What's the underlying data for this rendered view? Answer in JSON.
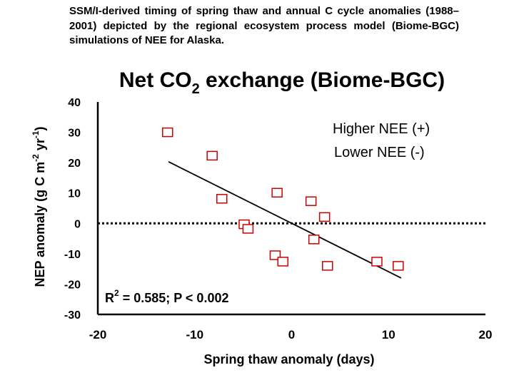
{
  "caption": "SSM/I-derived timing of spring thaw and annual C cycle anomalies (1988–2001) depicted by the regional ecosystem process model (Biome-BGC) simulations of NEE for Alaska.",
  "chart_data": {
    "type": "scatter",
    "title_pre": "Net CO",
    "title_sub": "2",
    "title_post": " exchange (Biome-BGC)",
    "xlabel": "Spring thaw anomaly (days)",
    "ylabel": "NEP anomaly (g C m-2 yr-1)",
    "ylabel_parts": {
      "a": "NEP anomaly (g C m",
      "b": "-2",
      "c": " yr",
      "d": "-1",
      "e": ")"
    },
    "xlim": [
      -20,
      20
    ],
    "ylim": [
      -30,
      40
    ],
    "xticks": [
      -20,
      -10,
      0,
      10,
      20
    ],
    "yticks": [
      -30,
      -20,
      -10,
      0,
      10,
      20,
      30,
      40
    ],
    "points": [
      {
        "x": -12.8,
        "y": 30.0
      },
      {
        "x": -8.2,
        "y": 22.3
      },
      {
        "x": -7.2,
        "y": 8.1
      },
      {
        "x": -4.9,
        "y": -0.3
      },
      {
        "x": -4.5,
        "y": -1.8
      },
      {
        "x": -1.5,
        "y": 10.1
      },
      {
        "x": -1.7,
        "y": -10.5
      },
      {
        "x": -0.9,
        "y": -12.6
      },
      {
        "x": 2.0,
        "y": 7.3
      },
      {
        "x": 3.4,
        "y": 2.1
      },
      {
        "x": 2.3,
        "y": -5.3
      },
      {
        "x": 3.7,
        "y": -14.0
      },
      {
        "x": 8.8,
        "y": -12.6
      },
      {
        "x": 11.0,
        "y": -14.0
      }
    ],
    "trend": {
      "x1": -12.7,
      "y1": 20.3,
      "x2": 11.3,
      "y2": -18.0
    },
    "zero_line_y": 0,
    "legend": [
      "Higher NEE (+)",
      "Lower NEE (-)"
    ],
    "annotation": {
      "r2_label": "R",
      "r2_sup": "2",
      "r2_rest": " = 0.585; P < 0.002"
    },
    "marker_color": "#cc0000"
  }
}
